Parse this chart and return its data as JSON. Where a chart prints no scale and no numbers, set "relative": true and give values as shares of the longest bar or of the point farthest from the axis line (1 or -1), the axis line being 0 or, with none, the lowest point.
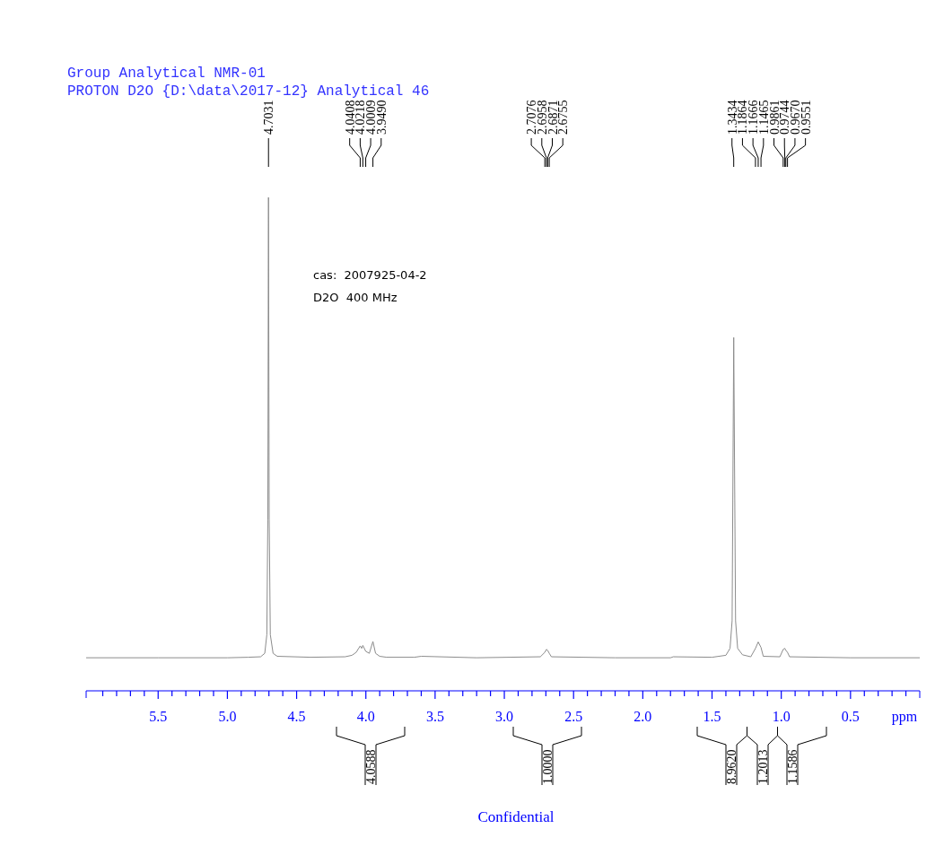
{
  "chart_data": {
    "type": "line",
    "title": "Group Analytical NMR-01",
    "subtitle": "PROTON D2O {D:\\data\\2017-12} Analytical 46",
    "xlabel": "ppm",
    "relative": true,
    "grid": false,
    "marker": "none",
    "line_style": "solid",
    "xlim": [
      6.02,
      0
    ],
    "xticks": [
      {
        "value": 5.9,
        "label": null
      },
      {
        "value": 5.8,
        "label": null
      },
      {
        "value": 5.7,
        "label": null
      },
      {
        "value": 5.6,
        "label": null
      },
      5.5,
      {
        "value": 5.4,
        "label": null
      },
      {
        "value": 5.3,
        "label": null
      },
      {
        "value": 5.2,
        "label": null
      },
      {
        "value": 5.1,
        "label": null
      },
      {
        "value": 5,
        "label": "5.0"
      },
      {
        "value": 4.9,
        "label": null
      },
      {
        "value": 4.8,
        "label": null
      },
      {
        "value": 4.7,
        "label": null
      },
      {
        "value": 4.6,
        "label": null
      },
      4.5,
      {
        "value": 4.4,
        "label": null
      },
      {
        "value": 4.3,
        "label": null
      },
      {
        "value": 4.2,
        "label": null
      },
      {
        "value": 4.1,
        "label": null
      },
      {
        "value": 4,
        "label": "4.0"
      },
      {
        "value": 3.9,
        "label": null
      },
      {
        "value": 3.8,
        "label": null
      },
      {
        "value": 3.7,
        "label": null
      },
      {
        "value": 3.6,
        "label": null
      },
      3.5,
      {
        "value": 3.4,
        "label": null
      },
      {
        "value": 3.3,
        "label": null
      },
      {
        "value": 3.2,
        "label": null
      },
      {
        "value": 3.1,
        "label": null
      },
      {
        "value": 3,
        "label": "3.0"
      },
      {
        "value": 2.9,
        "label": null
      },
      {
        "value": 2.8,
        "label": null
      },
      {
        "value": 2.7,
        "label": null
      },
      {
        "value": 2.6,
        "label": null
      },
      2.5,
      {
        "value": 2.4,
        "label": null
      },
      {
        "value": 2.3,
        "label": null
      },
      {
        "value": 2.2,
        "label": null
      },
      {
        "value": 2.1,
        "label": null
      },
      {
        "value": 2,
        "label": "2.0"
      },
      {
        "value": 1.9,
        "label": null
      },
      {
        "value": 1.8,
        "label": null
      },
      {
        "value": 1.7,
        "label": null
      },
      {
        "value": 1.6,
        "label": null
      },
      1.5,
      {
        "value": 1.4,
        "label": null
      },
      {
        "value": 1.3,
        "label": null
      },
      {
        "value": 1.2,
        "label": null
      },
      {
        "value": 1.1,
        "label": null
      },
      {
        "value": 1,
        "label": "1.0"
      },
      {
        "value": 0.9,
        "label": null
      },
      {
        "value": 0.8,
        "label": null
      },
      {
        "value": 0.7,
        "label": null
      },
      {
        "value": 0.6,
        "label": null
      },
      0.5,
      {
        "value": 0.4,
        "label": null
      },
      {
        "value": 0.3,
        "label": null
      },
      {
        "value": 0.2,
        "label": null
      },
      {
        "value": 0.1,
        "label": null
      }
    ],
    "series": [
      {
        "color": "#8c8c8c",
        "x": [
          6.02,
          5.5,
          5.0,
          4.85,
          4.76,
          4.73,
          4.715,
          4.708,
          4.7031,
          4.698,
          4.69,
          4.67,
          4.64,
          4.4,
          4.15,
          4.1,
          4.07,
          4.0408,
          4.03,
          4.0218,
          4.0009,
          3.975,
          3.949,
          3.93,
          3.9,
          3.85,
          3.65,
          3.6,
          3.2,
          2.74,
          2.7076,
          2.6958,
          2.6871,
          2.6755,
          2.66,
          2.2,
          1.8,
          1.78,
          1.5,
          1.4,
          1.37,
          1.355,
          1.3434,
          1.33,
          1.315,
          1.28,
          1.22,
          1.1864,
          1.1666,
          1.1465,
          1.13,
          1.01,
          0.9861,
          0.9744,
          0.967,
          0.9551,
          0.94,
          0.5,
          0
        ],
        "values": [
          0.067,
          0.067,
          0.067,
          0.068,
          0.069,
          0.076,
          0.114,
          0.347,
          1,
          0.347,
          0.114,
          0.076,
          0.07,
          0.068,
          0.069,
          0.072,
          0.078,
          0.091,
          0.086,
          0.092,
          0.08,
          0.076,
          0.1,
          0.076,
          0.07,
          0.068,
          0.068,
          0.07,
          0.067,
          0.069,
          0.078,
          0.084,
          0.082,
          0.076,
          0.069,
          0.067,
          0.067,
          0.069,
          0.068,
          0.072,
          0.086,
          0.142,
          0.716,
          0.142,
          0.086,
          0.073,
          0.069,
          0.086,
          0.099,
          0.088,
          0.07,
          0.069,
          0.084,
          0.086,
          0.082,
          0.078,
          0.069,
          0.067,
          0.067
        ]
      }
    ],
    "annotations": [
      "4.7031",
      "4.0408",
      "4.0218",
      "4.0009",
      "3.9490",
      "2.7076",
      "2.6958",
      "2.6871",
      "2.6755",
      "1.3434",
      "1.1864",
      "1.1666",
      "1.1465",
      "0.9861",
      "0.9744",
      "0.9670",
      "0.9551",
      "4.0588",
      "1.0000",
      "8.9620",
      "1.2013",
      "1.1586",
      "cas:  2007925-04-2",
      "D2O  400 MHz",
      "Confidential"
    ]
  }
}
